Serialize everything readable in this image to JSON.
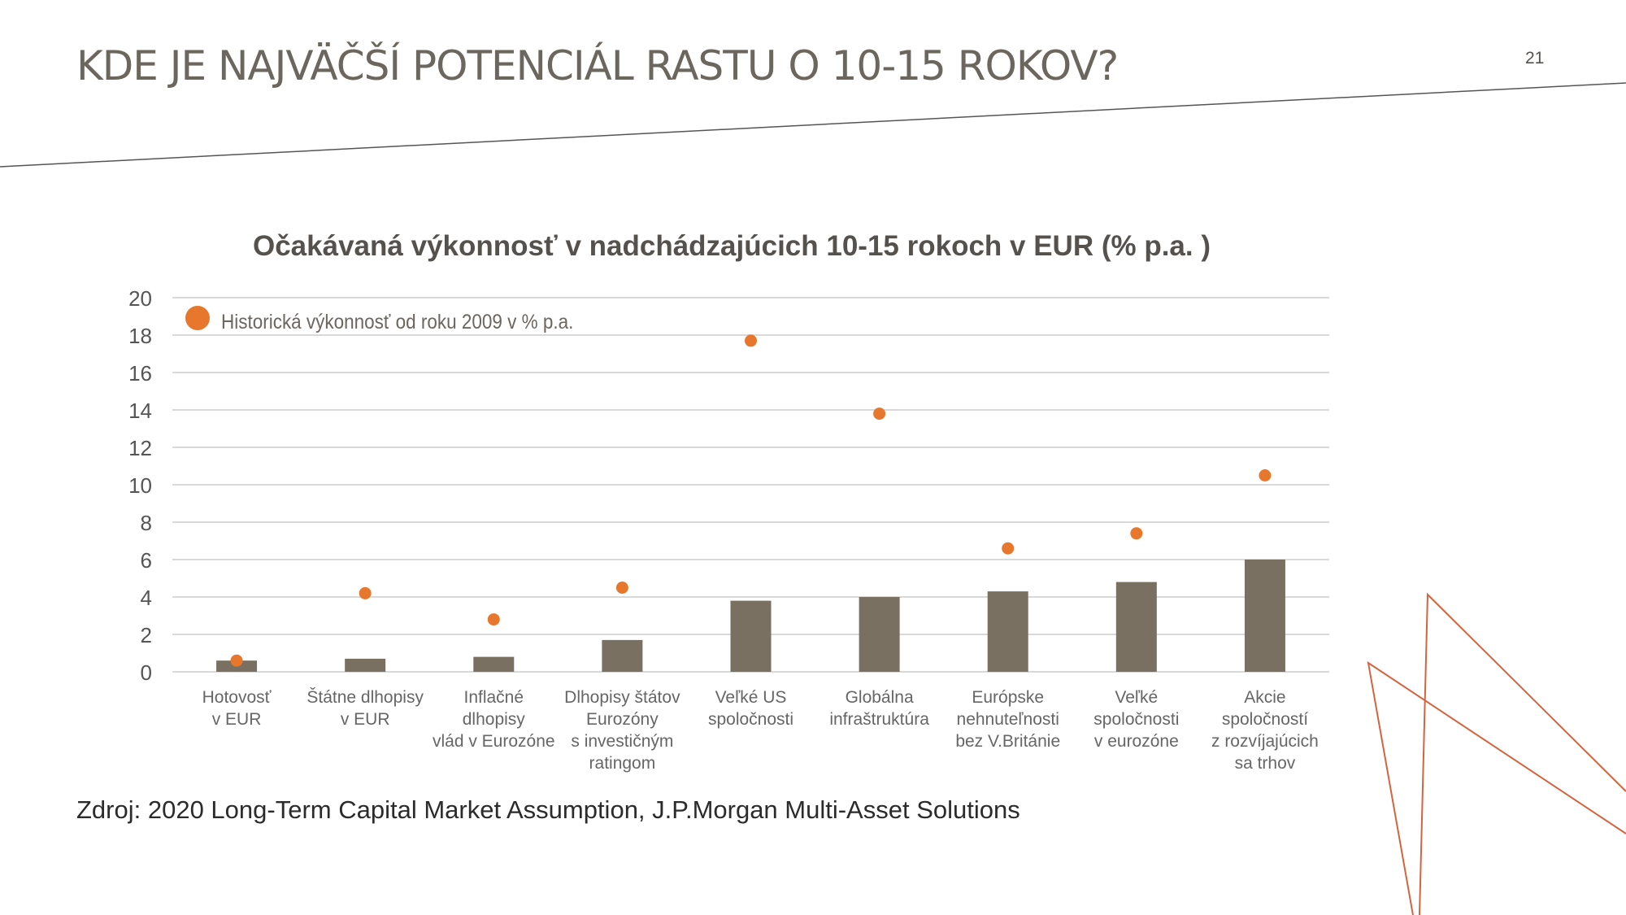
{
  "slide": {
    "title": "KDE JE NAJVÄČŠÍ POTENCIÁL RASTU O 10-15 ROKOV?",
    "page_number": "21",
    "source": "Zdroj: 2020 Long-Term Capital Market Assumption, J.P.Morgan Multi-Asset Solutions"
  },
  "colors": {
    "bar": "#7a7062",
    "marker": "#e8772e",
    "grid": "#d9d9d9",
    "axis_text": "#555555",
    "category_text": "#666666",
    "title_text": "#6b665e",
    "decoration_line": "#d5633d"
  },
  "chart_data": {
    "type": "bar",
    "title": "Očakávaná výkonnosť v nadchádzajúcich 10-15 rokoch v EUR (% p.a. )",
    "xlabel": "",
    "ylabel": "",
    "ylim": [
      0,
      20
    ],
    "yticks": [
      0,
      2,
      4,
      6,
      8,
      10,
      12,
      14,
      16,
      18,
      20
    ],
    "grid": true,
    "legend_position": "top-left",
    "categories": [
      [
        "Hotovosť",
        "v EUR"
      ],
      [
        "Štátne dlhopisy",
        "v EUR"
      ],
      [
        "Inflačné",
        "dlhopisy",
        "vlád v Eurozóne"
      ],
      [
        "Dlhopisy štátov",
        "Eurozóny",
        "s investičným",
        "ratingom"
      ],
      [
        "Veľké US",
        "spoločnosti"
      ],
      [
        "Globálna",
        "infraštruktúra"
      ],
      [
        "Európske",
        "nehnuteľnosti",
        "bez V.Británie"
      ],
      [
        "Veľké",
        "spoločnosti",
        "v eurozóne"
      ],
      [
        "Akcie",
        "spoločností",
        "z rozvíjajúcich",
        "sa trhov"
      ]
    ],
    "series": [
      {
        "kind": "bar",
        "values": [
          0.6,
          0.7,
          0.8,
          1.7,
          3.8,
          4.0,
          4.3,
          4.8,
          6.0
        ]
      },
      {
        "name": "Historická výkonnosť od roku 2009 v % p.a.",
        "kind": "marker",
        "values": [
          0.6,
          4.2,
          2.8,
          4.5,
          17.7,
          13.8,
          6.6,
          7.4,
          10.5
        ]
      }
    ]
  }
}
